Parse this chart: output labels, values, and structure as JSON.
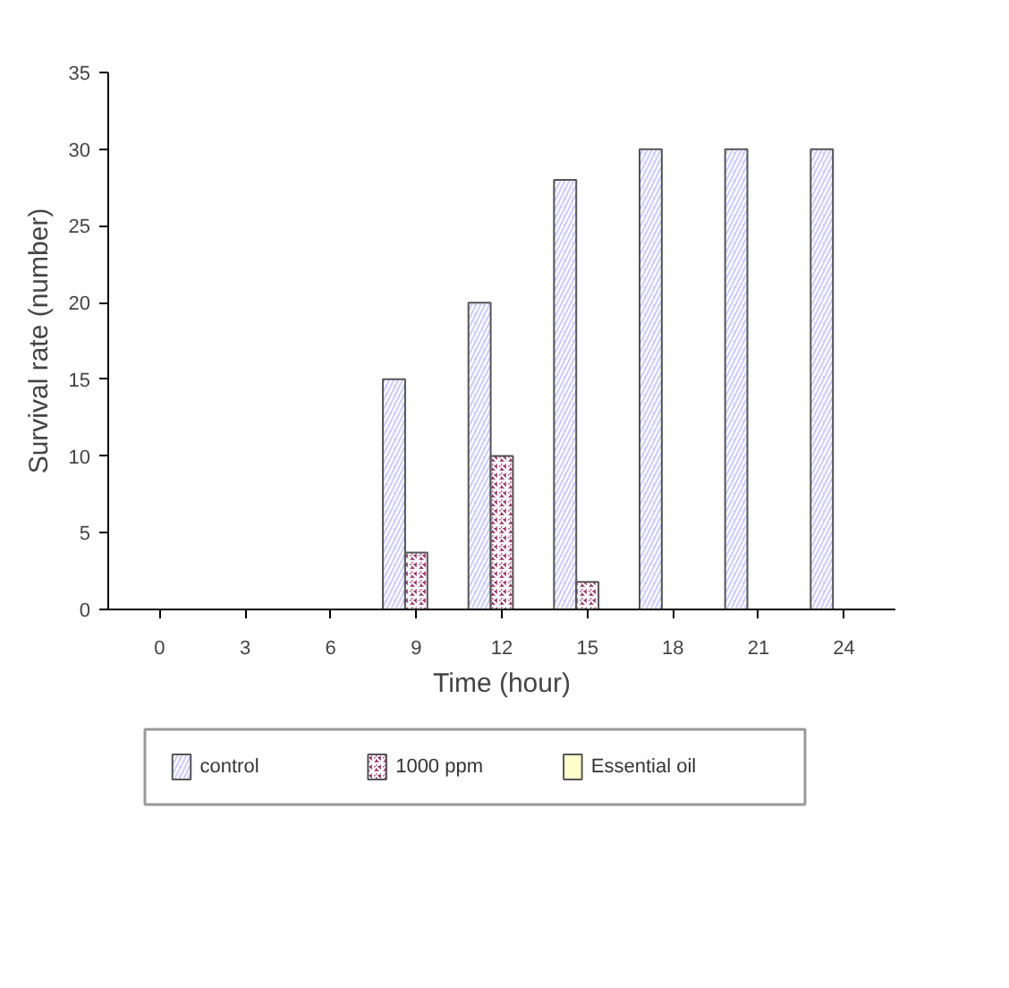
{
  "chart_data": {
    "type": "bar",
    "xlabel": "Time (hour)",
    "ylabel": "Survival rate (number)",
    "categories": [
      "0",
      "3",
      "6",
      "9",
      "12",
      "15",
      "18",
      "21",
      "24"
    ],
    "series": [
      {
        "name": "control",
        "color": "#ccccff",
        "values": [
          0,
          0,
          0,
          15,
          20,
          28,
          30,
          30,
          30
        ]
      },
      {
        "name": "1000 ppm",
        "color": "#993366",
        "values": [
          0,
          0,
          0,
          3.7,
          10,
          1.8,
          0,
          0,
          0
        ]
      },
      {
        "name": "Essential oil",
        "color": "#ffffcc",
        "values": [
          0,
          0,
          0,
          0,
          0,
          0,
          0,
          0,
          0
        ]
      }
    ],
    "ylim": [
      0,
      35
    ],
    "yticks": [
      0,
      5,
      10,
      15,
      20,
      25,
      30,
      35
    ],
    "grid": false,
    "legend": "bottom"
  }
}
